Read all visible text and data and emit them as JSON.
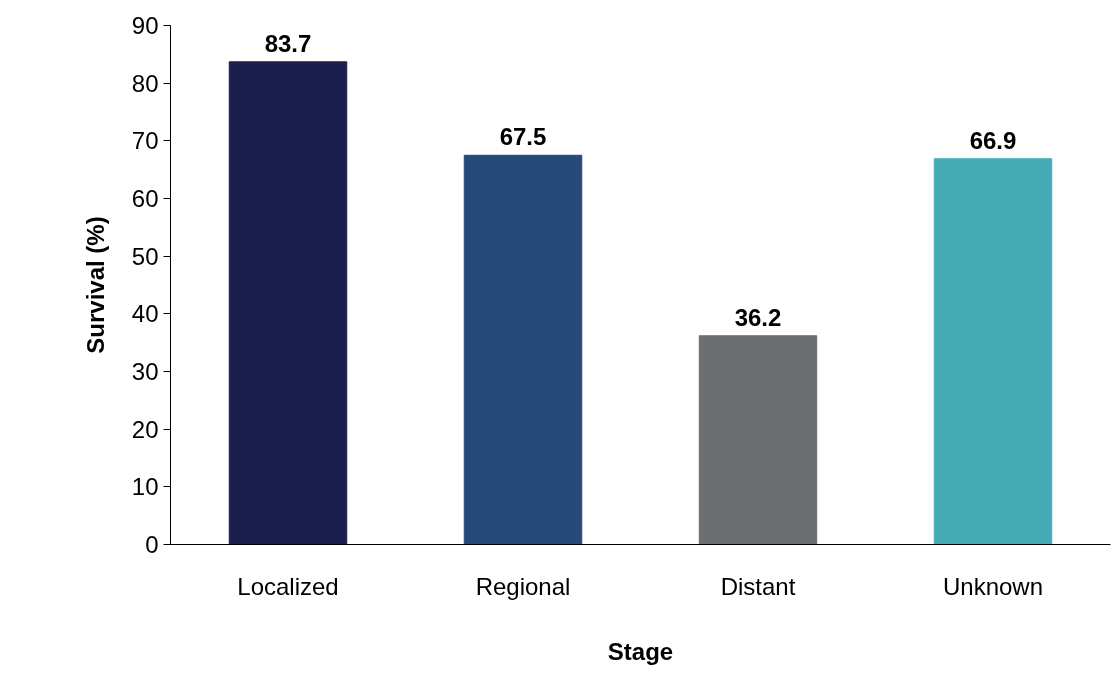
{
  "chart_data": {
    "type": "bar",
    "xlabel": "Stage",
    "ylabel": "Survival (%)",
    "categories": [
      "Localized",
      "Regional",
      "Distant",
      "Unknown"
    ],
    "values": [
      83.7,
      67.5,
      36.2,
      66.9
    ],
    "colors": [
      "#1b1f4b",
      "#254a7a",
      "#6d6e72",
      "#47abb6"
    ],
    "ylim": [
      0,
      90
    ],
    "yticks": [
      0,
      10,
      20,
      30,
      40,
      50,
      60,
      70,
      80,
      90
    ],
    "grid": false,
    "data_labels": true
  }
}
